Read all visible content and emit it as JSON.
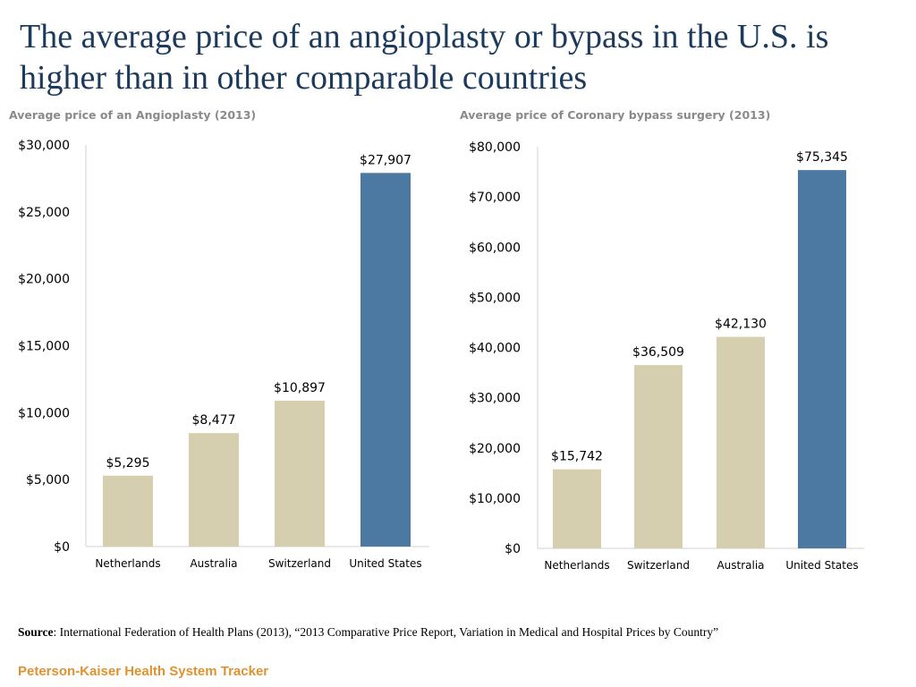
{
  "title": "The average price of an angioplasty or bypass in the U.S. is higher than in other comparable countries",
  "source": {
    "label": "Source",
    "text": ": International Federation of Health Plans (2013), “2013 Comparative Price Report, Variation in Medical and Hospital Prices by Country”"
  },
  "footer": {
    "brand": "Peterson-Kaiser Health System Tracker"
  },
  "colors": {
    "base_bar": "#d6cfaf",
    "highlight_bar": "#4b79a2",
    "title": "#1b3a5c",
    "brand": "#e0922f",
    "axis": "#d0d0d0"
  },
  "chart_data": [
    {
      "type": "bar",
      "title": "Average price of an Angioplasty (2013)",
      "categories": [
        "Netherlands",
        "Australia",
        "Switzerland",
        "United States"
      ],
      "values": [
        5295,
        8477,
        10897,
        27907
      ],
      "value_labels": [
        "$5,295",
        "$8,477",
        "$10,897",
        "$27,907"
      ],
      "highlight": "United States",
      "ylim": [
        0,
        30000
      ],
      "yticks": [
        0,
        5000,
        10000,
        15000,
        20000,
        25000,
        30000
      ],
      "ytick_labels": [
        "$0",
        "$5,000",
        "$10,000",
        "$15,000",
        "$20,000",
        "$25,000",
        "$30,000"
      ],
      "xlabel": "",
      "ylabel": "",
      "grid": false
    },
    {
      "type": "bar",
      "title": "Average price of Coronary bypass surgery (2013)",
      "categories": [
        "Netherlands",
        "Switzerland",
        "Australia",
        "United States"
      ],
      "values": [
        15742,
        36509,
        42130,
        75345
      ],
      "value_labels": [
        "$15,742",
        "$36,509",
        "$42,130",
        "$75,345"
      ],
      "highlight": "United States",
      "ylim": [
        0,
        80000
      ],
      "yticks": [
        0,
        10000,
        20000,
        30000,
        40000,
        50000,
        60000,
        70000,
        80000
      ],
      "ytick_labels": [
        "$0",
        "$10,000",
        "$20,000",
        "$30,000",
        "$40,000",
        "$50,000",
        "$60,000",
        "$70,000",
        "$80,000"
      ],
      "xlabel": "",
      "ylabel": "",
      "grid": false
    }
  ]
}
